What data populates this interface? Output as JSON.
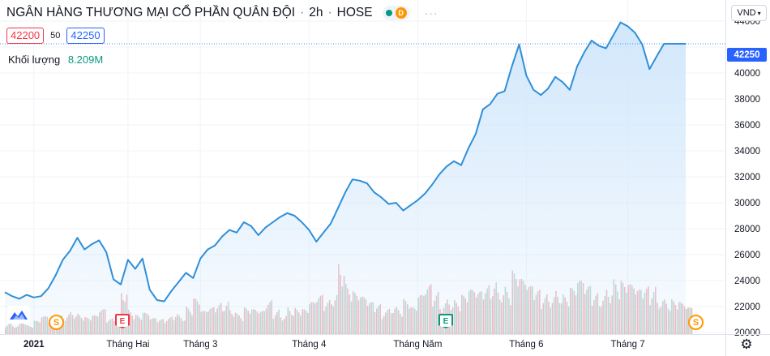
{
  "header": {
    "title": "NGÂN HÀNG THƯƠNG MẠI CỔ PHẦN QUÂN ĐỘI",
    "interval": "2h",
    "exchange": "HOSE",
    "status_badge": "D",
    "more": "···"
  },
  "quote": {
    "bid": "42200",
    "spread": "50",
    "ask": "42250"
  },
  "volume": {
    "label": "Khối lượng",
    "value": "8.209M"
  },
  "currency": {
    "label": "VND",
    "chevron": "▾"
  },
  "last_price": "42250",
  "settings_glyph": "⚙",
  "events": {
    "s": "S",
    "e": "E"
  },
  "colors": {
    "line": "#2f8fd8",
    "area_top": "#cfe6fb",
    "vol_up": "#e7a9ae",
    "vol_down": "#9fd4c6",
    "price_tag": "#2962ff",
    "dotted": "#4a8ee8",
    "grid": "#f0f3fa"
  },
  "chart_data": {
    "type": "area",
    "ylim": [
      20000,
      45000
    ],
    "y_ticks": [
      "20000",
      "22000",
      "24000",
      "26000",
      "28000",
      "30000",
      "32000",
      "34000",
      "36000",
      "38000",
      "40000",
      "42000",
      "44000"
    ],
    "x_ticks": [
      "2021",
      "Tháng Hai",
      "Tháng 3",
      "Tháng 4",
      "Tháng Năm",
      "Tháng 6",
      "Tháng 7"
    ],
    "x_tick_idx": [
      4,
      17,
      27,
      42,
      57,
      72,
      86
    ],
    "x_count": 95,
    "series": [
      {
        "values": [
          23100,
          22800,
          22600,
          22900,
          22700,
          22800,
          23400,
          24400,
          25600,
          26300,
          27300,
          26400,
          26800,
          27100,
          26200,
          24100,
          23700,
          25600,
          24900,
          25700,
          23300,
          22500,
          22400,
          23200,
          23900,
          24600,
          24200,
          25700,
          26400,
          26700,
          27400,
          27900,
          27700,
          28500,
          28200,
          27500,
          28100,
          28500,
          28900,
          29200,
          29000,
          28500,
          27900,
          27000,
          27700,
          28400,
          29600,
          30800,
          31800,
          31700,
          31500,
          30800,
          30400,
          29900,
          30000,
          29400,
          29800,
          30200,
          30700,
          31400,
          32200,
          32800,
          33200,
          32900,
          34200,
          35300,
          37200,
          37600,
          38400,
          38600,
          40500,
          42200,
          39800,
          38700,
          38300,
          38800,
          39700,
          39300,
          38700,
          40500,
          41600,
          42500,
          42100,
          41900,
          42900,
          43900,
          43600,
          43100,
          42200,
          40300,
          41300,
          42250,
          42250,
          42250,
          42250
        ]
      }
    ],
    "volume": [
      0.14,
      0.12,
      0.18,
      0.1,
      0.15,
      0.2,
      0.16,
      0.22,
      0.26,
      0.3,
      0.24,
      0.19,
      0.21,
      0.28,
      0.18,
      0.25,
      0.6,
      0.3,
      0.22,
      0.24,
      0.18,
      0.17,
      0.2,
      0.28,
      0.24,
      0.32,
      0.4,
      0.26,
      0.3,
      0.36,
      0.42,
      0.34,
      0.25,
      0.3,
      0.28,
      0.26,
      0.38,
      0.3,
      0.26,
      0.34,
      0.3,
      0.28,
      0.36,
      0.44,
      0.4,
      0.52,
      0.96,
      0.6,
      0.48,
      0.42,
      0.36,
      0.34,
      0.3,
      0.38,
      0.34,
      0.4,
      0.3,
      0.44,
      0.56,
      0.5,
      0.42,
      0.46,
      0.4,
      0.44,
      0.5,
      0.48,
      0.56,
      0.66,
      0.6,
      0.58,
      0.72,
      0.62,
      0.54,
      0.5,
      0.48,
      0.52,
      0.56,
      0.46,
      0.52,
      0.6,
      0.54,
      0.48,
      0.5,
      0.62,
      0.66,
      0.6,
      0.56,
      0.5,
      0.54,
      0.58,
      0.48,
      0.44,
      0.4,
      0.36,
      0.3
    ]
  }
}
